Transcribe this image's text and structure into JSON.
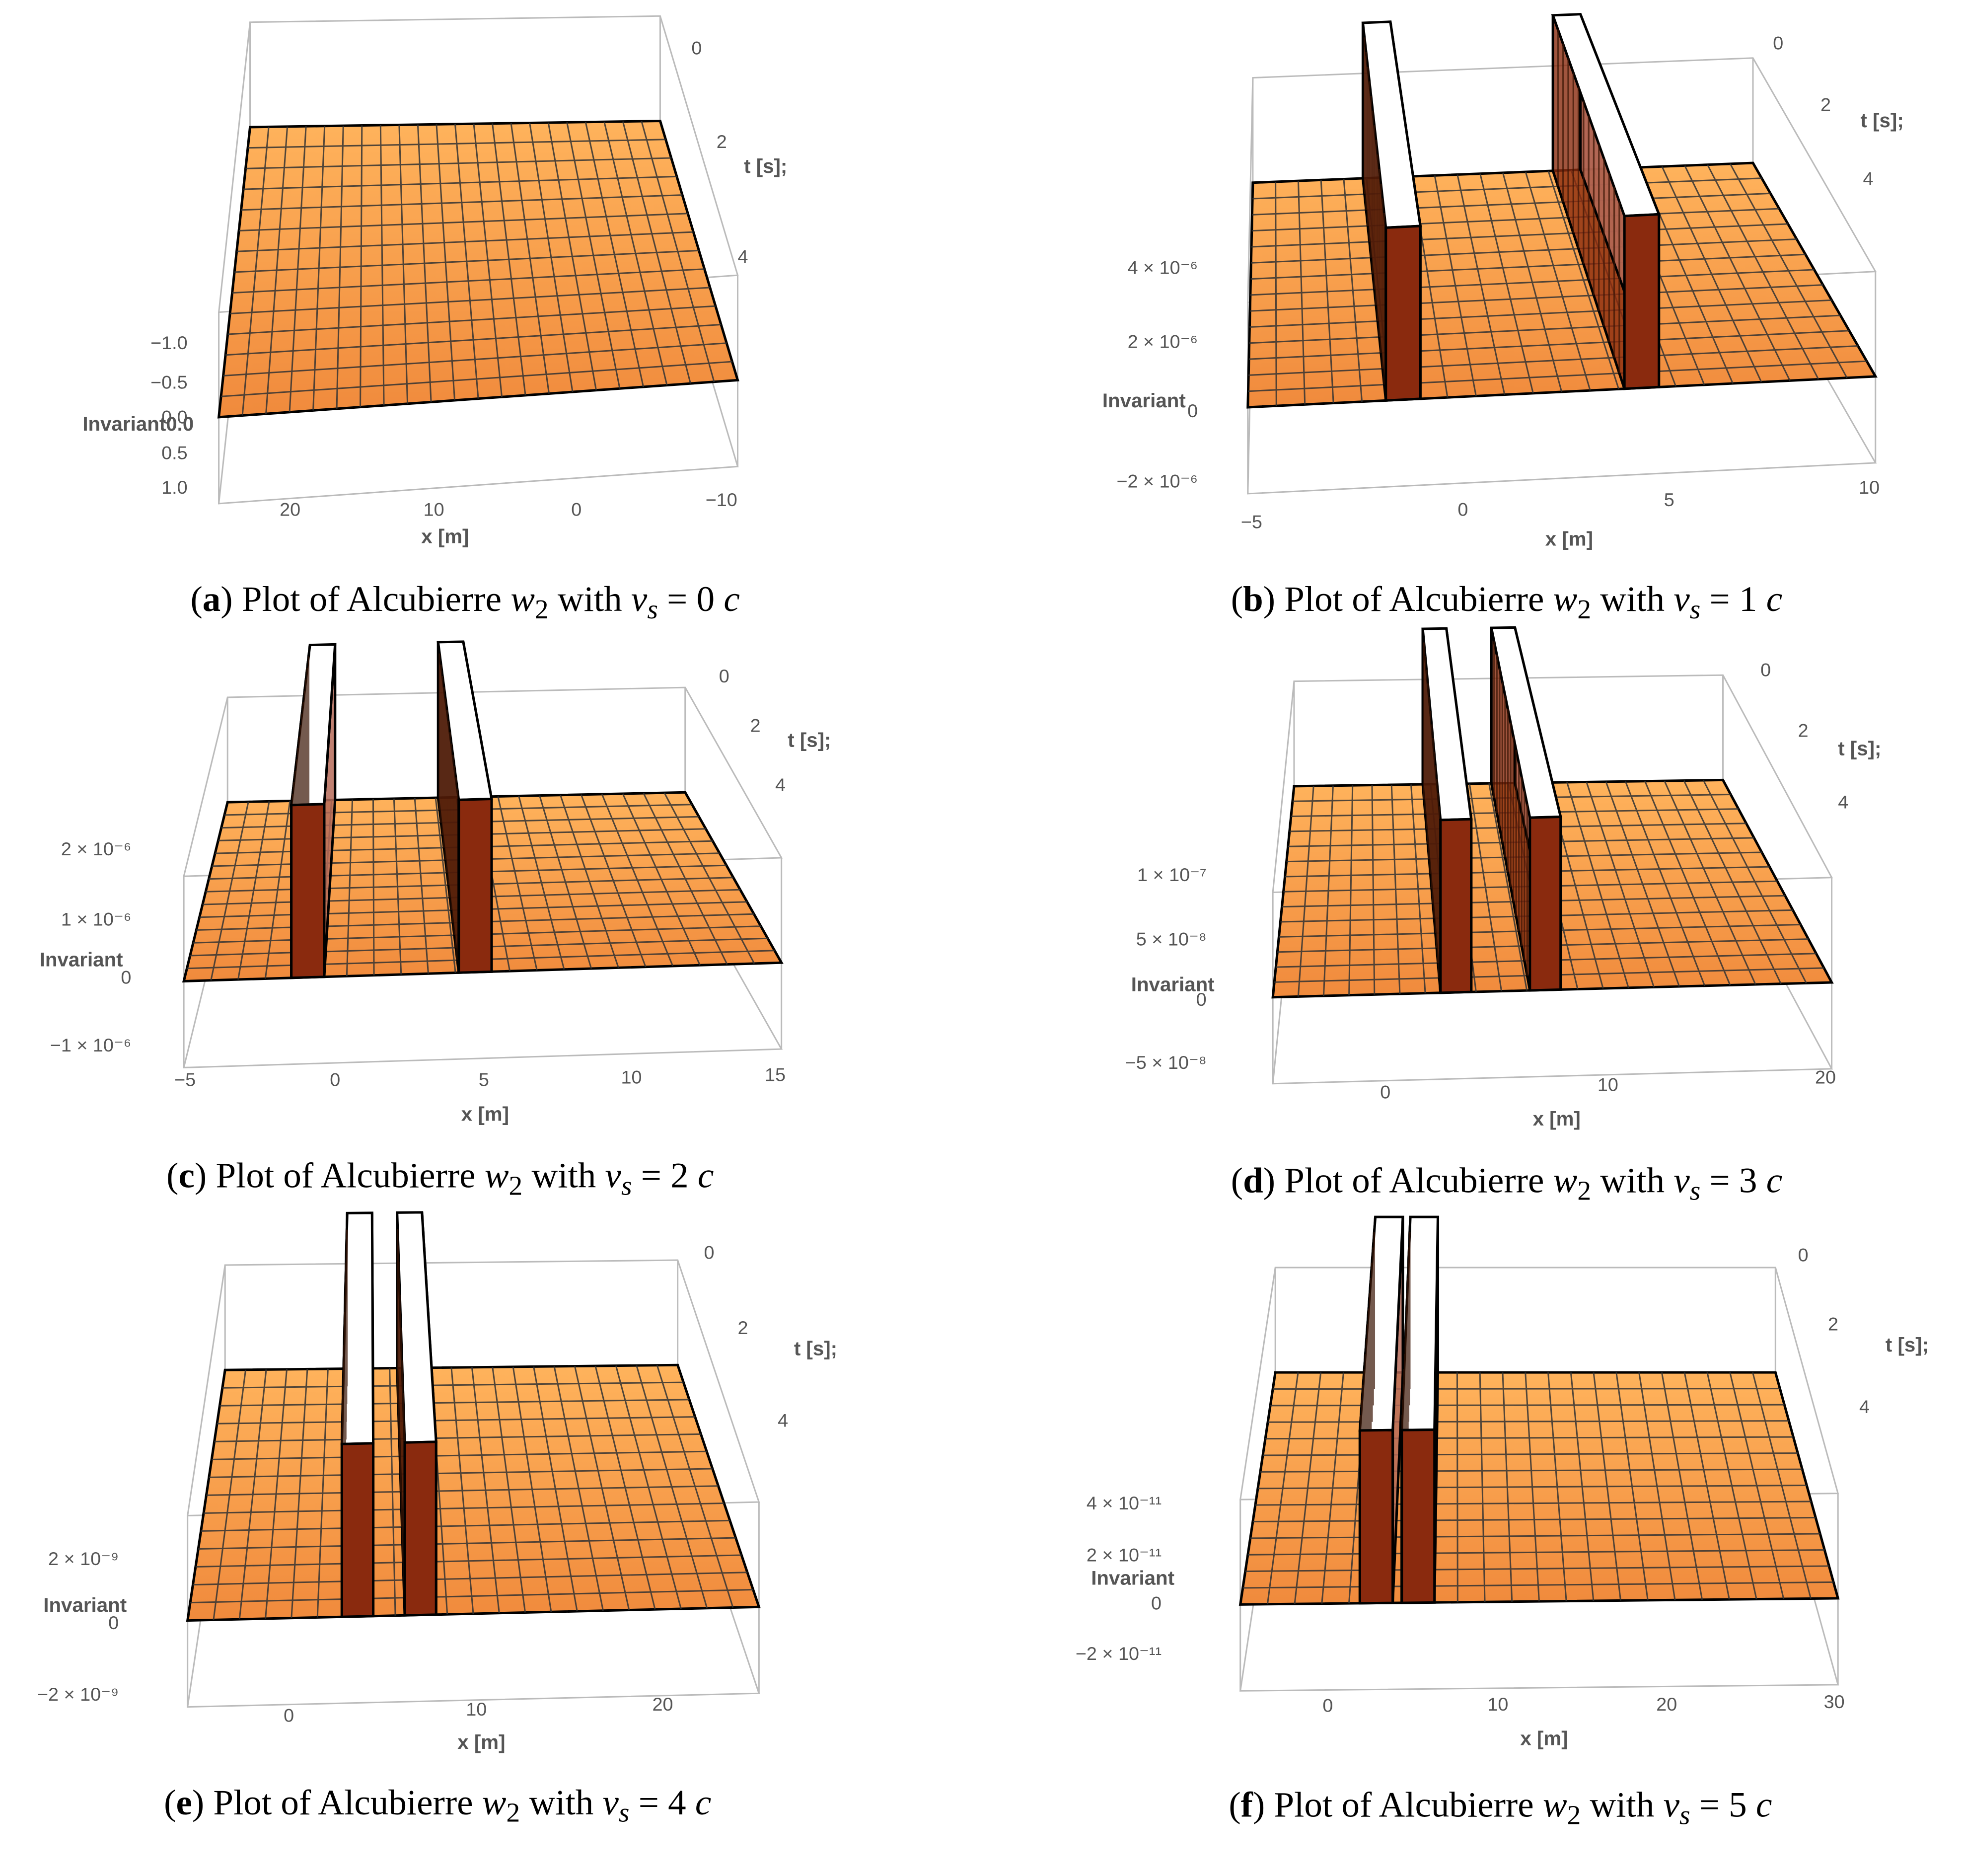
{
  "colors": {
    "surface_top": "#ffb35c",
    "surface_bottom": "#f08a3c",
    "wall_face": "#8a2a0e",
    "wall_side": "#b56a58",
    "wall_top": "#ffffff",
    "mesh": "#333333",
    "box": "#bbbbbb"
  },
  "axis_labels": {
    "x": "x [m]",
    "t": "t [s];",
    "z": "Invariant"
  },
  "panels": [
    {
      "id": "a",
      "caption": {
        "letter": "a",
        "pre": "Plot of Alcubierre ",
        "w": "w",
        "sub": "2",
        "mid": " with ",
        "v": "v",
        "vsub": "s",
        "eq": " = 0 ",
        "c": "c"
      },
      "chart_data": {
        "type": "surface3d",
        "vs": 0,
        "walls": false,
        "x_ticks": [
          "20",
          "10",
          "0",
          "−10"
        ],
        "t_ticks": [
          "0",
          "2",
          "4"
        ],
        "z_ticks": [
          "−1.0",
          "−0.5",
          "0.0",
          "0.5",
          "1.0"
        ],
        "z_label_inline": "Invariant0.0"
      }
    },
    {
      "id": "b",
      "caption": {
        "letter": "b",
        "pre": "Plot of Alcubierre ",
        "w": "w",
        "sub": "2",
        "mid": " with ",
        "v": "v",
        "vsub": "s",
        "eq": " = 1 ",
        "c": "c"
      },
      "chart_data": {
        "type": "surface3d",
        "vs": 1,
        "walls": true,
        "x_ticks": [
          "−5",
          "0",
          "5",
          "10"
        ],
        "t_ticks": [
          "0",
          "2",
          "4"
        ],
        "z_ticks": [
          "4 × 10⁻⁶",
          "2 × 10⁻⁶",
          "0",
          "−2 × 10⁻⁶"
        ]
      }
    },
    {
      "id": "c",
      "caption": {
        "letter": "c",
        "pre": "Plot of Alcubierre ",
        "w": "w",
        "sub": "2",
        "mid": " with ",
        "v": "v",
        "vsub": "s",
        "eq": " = 2 ",
        "c": "c"
      },
      "chart_data": {
        "type": "surface3d",
        "vs": 2,
        "walls": true,
        "x_ticks": [
          "−5",
          "0",
          "5",
          "10",
          "15"
        ],
        "t_ticks": [
          "0",
          "2",
          "4"
        ],
        "z_ticks": [
          "2 × 10⁻⁶",
          "1 × 10⁻⁶",
          "0",
          "−1 × 10⁻⁶"
        ]
      }
    },
    {
      "id": "d",
      "caption": {
        "letter": "d",
        "pre": "Plot of Alcubierre ",
        "w": "w",
        "sub": "2",
        "mid": " with ",
        "v": "v",
        "vsub": "s",
        "eq": " = 3 ",
        "c": "c"
      },
      "chart_data": {
        "type": "surface3d",
        "vs": 3,
        "walls": true,
        "x_ticks": [
          "0",
          "10",
          "20"
        ],
        "t_ticks": [
          "0",
          "2",
          "4"
        ],
        "z_ticks": [
          "1 × 10⁻⁷",
          "5 × 10⁻⁸",
          "0",
          "−5 × 10⁻⁸"
        ]
      }
    },
    {
      "id": "e",
      "caption": {
        "letter": "e",
        "pre": "Plot of Alcubierre ",
        "w": "w",
        "sub": "2",
        "mid": " with ",
        "v": "v",
        "vsub": "s",
        "eq": " = 4 ",
        "c": "c"
      },
      "chart_data": {
        "type": "surface3d",
        "vs": 4,
        "walls": true,
        "x_ticks": [
          "0",
          "10",
          "20"
        ],
        "t_ticks": [
          "0",
          "2",
          "4"
        ],
        "z_ticks": [
          "2 × 10⁻⁹",
          "0",
          "−2 × 10⁻⁹"
        ]
      }
    },
    {
      "id": "f",
      "caption": {
        "letter": "f",
        "pre": "Plot of Alcubierre ",
        "w": "w",
        "sub": "2",
        "mid": " with ",
        "v": "v",
        "vsub": "s",
        "eq": " = 5 ",
        "c": "c"
      },
      "chart_data": {
        "type": "surface3d",
        "vs": 5,
        "walls": true,
        "x_ticks": [
          "0",
          "10",
          "20",
          "30"
        ],
        "t_ticks": [
          "0",
          "2",
          "4"
        ],
        "z_ticks": [
          "4 × 10⁻¹¹",
          "2 × 10⁻¹¹",
          "0",
          "−2 × 10⁻¹¹"
        ]
      }
    }
  ]
}
